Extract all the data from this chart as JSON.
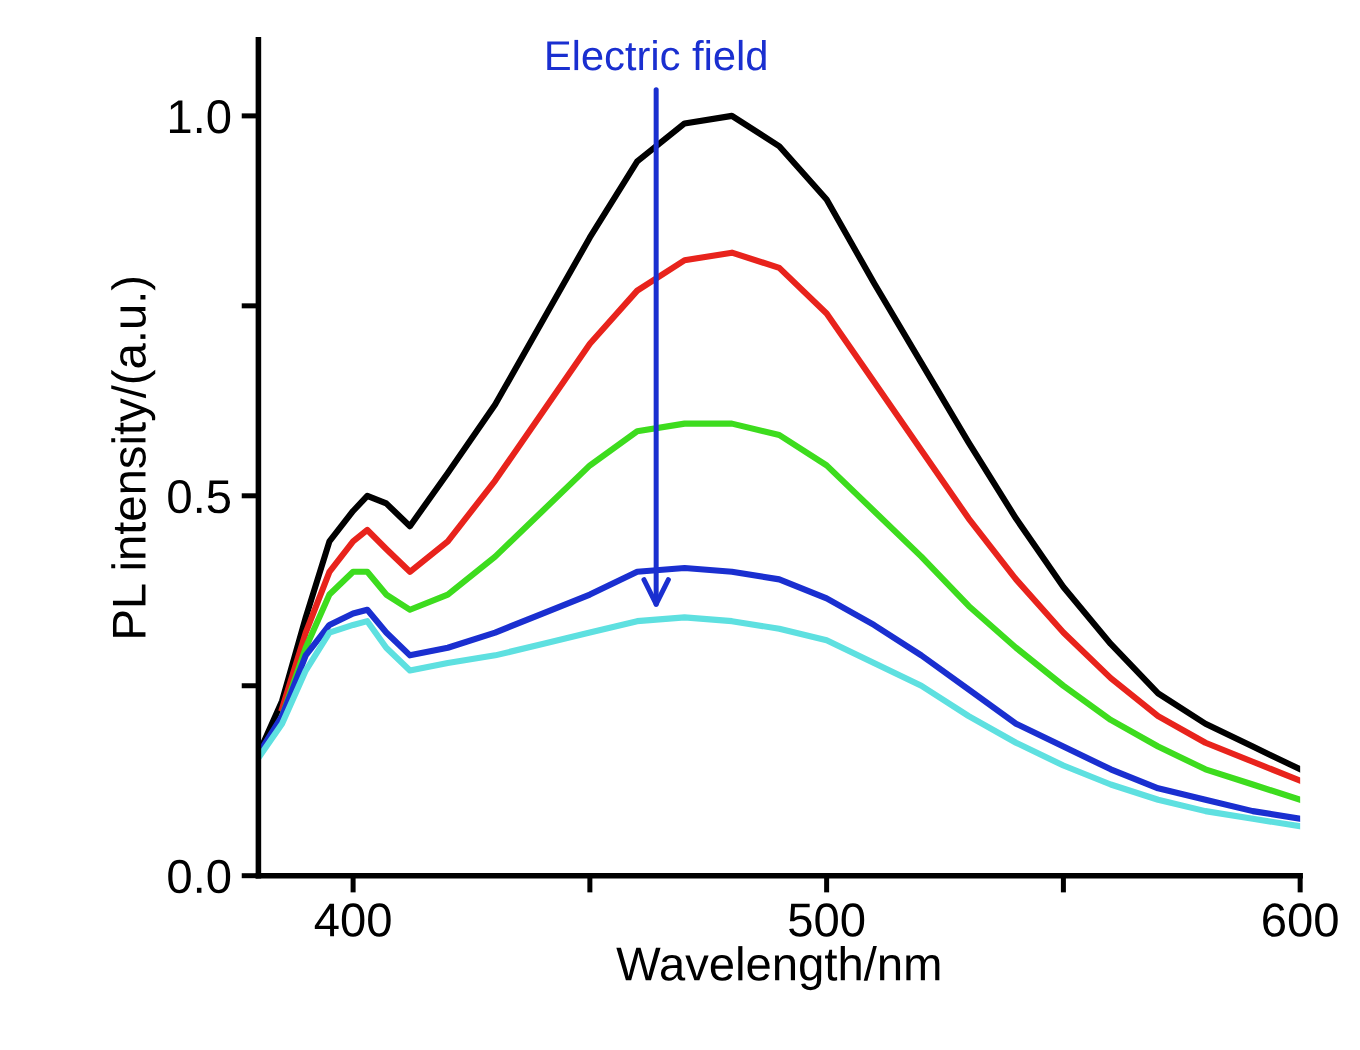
{
  "chart_data": {
    "type": "line",
    "xlabel": "Wavelength/nm",
    "ylabel": "PL intensity/(a.u.)",
    "xlim": [
      380,
      600
    ],
    "xticks": [
      400,
      {
        "value": 450,
        "label": null
      },
      500,
      {
        "value": 550,
        "label": null
      },
      600
    ],
    "ylim": [
      0,
      1.1
    ],
    "yticks": [
      {
        "value": 0,
        "label": "0.0"
      },
      {
        "value": 0.25,
        "label": null
      },
      {
        "value": 0.5,
        "label": "0.5"
      },
      {
        "value": 0.75,
        "label": null
      },
      {
        "value": 1.0,
        "label": "1.0"
      }
    ],
    "grid": false,
    "legend": false,
    "marker": "none",
    "line_style": "solid",
    "annotations": [
      {
        "text": "Electric field",
        "x": 464,
        "y": 0.35
      }
    ],
    "x": [
      380,
      385,
      390,
      395,
      400,
      403,
      407,
      412,
      420,
      430,
      440,
      450,
      460,
      470,
      480,
      490,
      500,
      510,
      520,
      530,
      540,
      550,
      560,
      570,
      580,
      590,
      600
    ],
    "series": [
      {
        "color": "#000000",
        "values": [
          0.16,
          0.23,
          0.34,
          0.44,
          0.48,
          0.5,
          0.49,
          0.46,
          0.53,
          0.62,
          0.73,
          0.84,
          0.94,
          0.99,
          1.0,
          0.96,
          0.89,
          0.78,
          0.675,
          0.57,
          0.47,
          0.38,
          0.305,
          0.24,
          0.2,
          0.17,
          0.14
        ]
      },
      {
        "color": "#e8231c",
        "values": [
          null,
          0.22,
          0.32,
          0.4,
          0.44,
          0.455,
          0.43,
          0.4,
          0.44,
          0.52,
          0.61,
          0.7,
          0.77,
          0.81,
          0.82,
          0.8,
          0.74,
          0.65,
          0.56,
          0.47,
          0.39,
          0.32,
          0.26,
          0.21,
          0.175,
          0.15,
          0.125
        ]
      },
      {
        "color": "#3ddc1e",
        "values": [
          null,
          0.21,
          0.3,
          0.37,
          0.4,
          0.4,
          0.37,
          0.35,
          0.37,
          0.42,
          0.48,
          0.54,
          0.585,
          0.595,
          0.595,
          0.58,
          0.54,
          0.48,
          0.42,
          0.355,
          0.3,
          0.25,
          0.205,
          0.17,
          0.14,
          0.12,
          0.1
        ]
      },
      {
        "color": "#1a2fd0",
        "values": [
          0.16,
          0.21,
          0.29,
          0.33,
          0.345,
          0.35,
          0.32,
          0.29,
          0.3,
          0.32,
          0.345,
          0.37,
          0.4,
          0.405,
          0.4,
          0.39,
          0.365,
          0.33,
          0.29,
          0.245,
          0.2,
          0.17,
          0.14,
          0.115,
          0.1,
          0.085,
          0.075
        ]
      },
      {
        "color": "#5ee0e0",
        "values": [
          0.155,
          0.2,
          0.27,
          0.32,
          0.33,
          0.335,
          0.3,
          0.27,
          0.28,
          0.29,
          0.305,
          0.32,
          0.335,
          0.34,
          0.335,
          0.325,
          0.31,
          0.28,
          0.25,
          0.21,
          0.175,
          0.145,
          0.12,
          0.1,
          0.085,
          0.075,
          0.065
        ]
      }
    ]
  }
}
